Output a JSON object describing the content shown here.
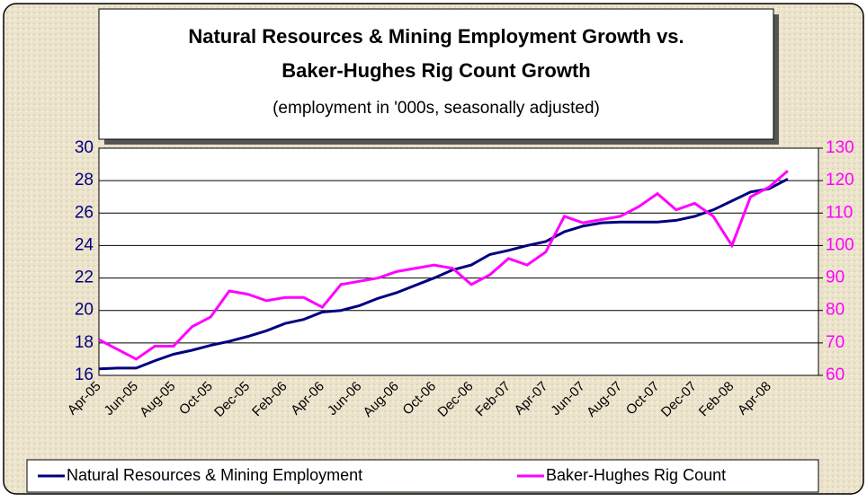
{
  "chart_data": {
    "type": "line",
    "title": "Natural Resources & Mining Employment Growth vs.",
    "title2": "Baker-Hughes Rig Count Growth",
    "subtitle": "(employment in '000s, seasonally adjusted)",
    "categories": [
      "Apr-05",
      null,
      "Jun-05",
      null,
      "Aug-05",
      null,
      "Oct-05",
      null,
      "Dec-05",
      null,
      "Feb-06",
      null,
      "Apr-06",
      null,
      "Jun-06",
      null,
      "Aug-06",
      null,
      "Oct-06",
      null,
      "Dec-06",
      null,
      "Feb-07",
      null,
      "Apr-07",
      null,
      "Jun-07",
      null,
      "Aug-07",
      null,
      "Oct-07",
      null,
      "Dec-07",
      null,
      "Feb-08",
      null,
      "Apr-08",
      null
    ],
    "series": [
      {
        "name": "Natural Resources & Mining Employment",
        "color": "#000080",
        "values": [
          16.4,
          16.45,
          16.45,
          16.9,
          17.3,
          17.55,
          17.85,
          18.1,
          18.4,
          18.75,
          19.2,
          19.45,
          19.9,
          20.0,
          20.3,
          20.75,
          21.1,
          21.55,
          22.0,
          22.5,
          22.8,
          23.45,
          23.7,
          24.0,
          24.25,
          24.85,
          25.2,
          25.4,
          25.45,
          25.45,
          25.45,
          25.55,
          25.8,
          26.2,
          26.75,
          27.3,
          27.5,
          28.1
        ]
      },
      {
        "name": "Baker-Hughes Rig Count",
        "color": "#ff00ff",
        "axis": "y2",
        "values": [
          71,
          68,
          65,
          69,
          69,
          75,
          78,
          86,
          85,
          83,
          84,
          84,
          81,
          88,
          89,
          90,
          92,
          93,
          94,
          93,
          88,
          91,
          96,
          94,
          98,
          109,
          107,
          108,
          109,
          112,
          116,
          111,
          113,
          109,
          100,
          115,
          118,
          123
        ]
      }
    ],
    "ylim": [
      16,
      30
    ],
    "yticks": [
      16,
      18,
      20,
      22,
      24,
      26,
      28,
      30
    ],
    "y2lim": [
      60,
      130
    ],
    "y2ticks": [
      60,
      70,
      80,
      90,
      100,
      110,
      120,
      130
    ],
    "grid": true,
    "legend": "bottom"
  }
}
